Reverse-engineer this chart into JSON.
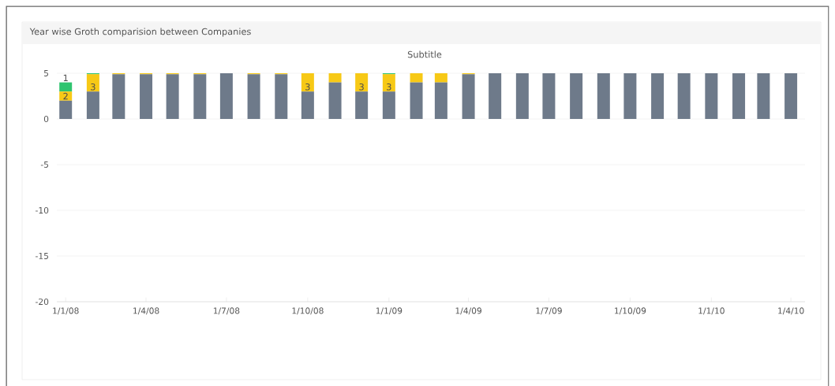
{
  "chart_data": {
    "type": "bar",
    "title": "Year wise Groth comparision between Companies",
    "subtitle": "Subtitle",
    "stacked": true,
    "x": [
      "2008-01",
      "2008-02",
      "2008-03",
      "2008-04",
      "2008-05",
      "2008-06",
      "2008-07",
      "2008-08",
      "2008-09",
      "2008-10",
      "2008-11",
      "2008-12",
      "2009-01",
      "2009-02",
      "2009-03",
      "2009-04",
      "2009-05",
      "2009-06",
      "2009-07",
      "2009-08",
      "2009-09",
      "2009-10",
      "2009-11",
      "2009-12",
      "2010-01",
      "2010-02",
      "2010-03",
      "2010-04"
    ],
    "series": [
      {
        "color": "#6e7a8a",
        "values": [
          2,
          3,
          4.9,
          4.9,
          4.9,
          4.9,
          5,
          4.9,
          4.9,
          3,
          4,
          3,
          3,
          4,
          4,
          4.9,
          5,
          5,
          5,
          5,
          5,
          5,
          5,
          5,
          5,
          5,
          5,
          5
        ],
        "value_labels": [
          "2",
          "3",
          null,
          null,
          null,
          null,
          null,
          null,
          null,
          "3",
          null,
          "3",
          "3",
          null,
          null,
          null,
          null,
          null,
          null,
          null,
          null,
          null,
          null,
          null,
          null,
          null,
          null,
          null
        ]
      },
      {
        "color": "#f7c916",
        "values": [
          1,
          1.9,
          0.1,
          0.1,
          0.1,
          0.1,
          0,
          0.1,
          0.1,
          2,
          1,
          2,
          1.9,
          1,
          1,
          0.1,
          0,
          0,
          0,
          0,
          0,
          0,
          0,
          0,
          0,
          0,
          0,
          0
        ]
      },
      {
        "color": "#2fc46f",
        "values": [
          1,
          0.1,
          0,
          0,
          0,
          0,
          0,
          0,
          0,
          0,
          0,
          0,
          0.1,
          0,
          0,
          0,
          0,
          0,
          0,
          0,
          0,
          0,
          0,
          0,
          0,
          0,
          0,
          0
        ],
        "value_labels": [
          "1",
          null,
          null,
          null,
          null,
          null,
          null,
          null,
          null,
          null,
          null,
          null,
          null,
          null,
          null,
          null,
          null,
          null,
          null,
          null,
          null,
          null,
          null,
          null,
          null,
          null,
          null,
          null
        ]
      }
    ],
    "xlim": [
      "2007-12-22",
      "2010-04-17"
    ],
    "xticks": [
      {
        "value": "2008-01-01",
        "label": "1/1/08"
      },
      {
        "value": "2008-04-01",
        "label": "1/4/08"
      },
      {
        "value": "2008-07-01",
        "label": "1/7/08"
      },
      {
        "value": "2008-10-01",
        "label": "1/10/08"
      },
      {
        "value": "2009-01-01",
        "label": "1/1/09"
      },
      {
        "value": "2009-04-01",
        "label": "1/4/09"
      },
      {
        "value": "2009-07-01",
        "label": "1/7/09"
      },
      {
        "value": "2009-10-01",
        "label": "1/10/09"
      },
      {
        "value": "2010-01-01",
        "label": "1/1/10"
      },
      {
        "value": "2010-04-01",
        "label": "1/4/10"
      }
    ],
    "ylim": [
      -20,
      5
    ],
    "yticks": [
      -20,
      -15,
      -10,
      -5,
      0,
      5
    ],
    "grid": "y"
  }
}
